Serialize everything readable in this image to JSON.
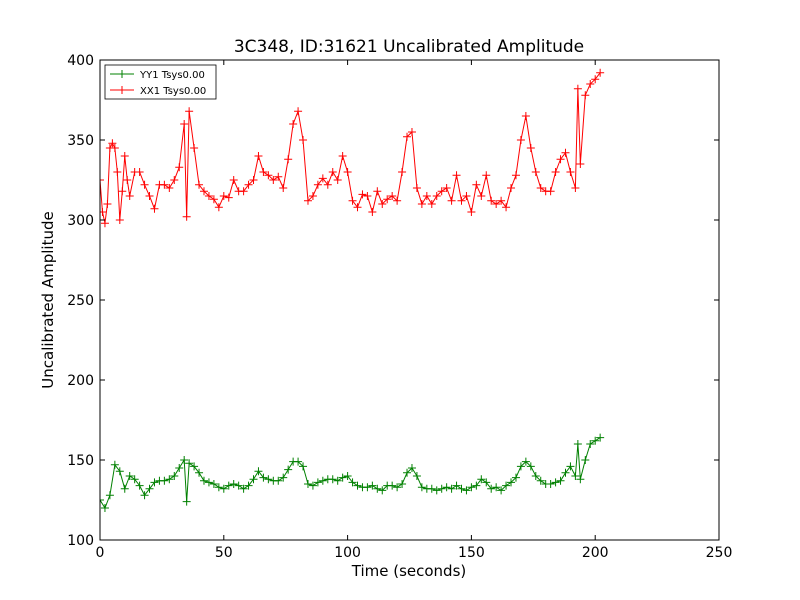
{
  "chart_data": {
    "type": "line",
    "title": "3C348, ID:31621 Uncalibrated Amplitude",
    "xlabel": "Time (seconds)",
    "ylabel": "Uncalibrated Amplitude",
    "xlim": [
      0,
      250
    ],
    "ylim": [
      100,
      400
    ],
    "x_ticks": [
      "0",
      "50",
      "100",
      "150",
      "200",
      "250"
    ],
    "y_ticks": [
      "100",
      "150",
      "200",
      "250",
      "300",
      "350",
      "400"
    ],
    "grid": false,
    "legend_position": "top-left",
    "marker": "plus",
    "series": [
      {
        "name": "YY1 Tsys0.00",
        "color": "#008000",
        "x": [
          0,
          2,
          4,
          6,
          8,
          10,
          12,
          14,
          16,
          18,
          20,
          22,
          24,
          26,
          28,
          30,
          32,
          34,
          35,
          36,
          38,
          40,
          42,
          44,
          46,
          48,
          50,
          52,
          54,
          56,
          58,
          60,
          62,
          64,
          66,
          68,
          70,
          72,
          74,
          76,
          78,
          80,
          82,
          84,
          86,
          88,
          90,
          92,
          94,
          96,
          98,
          100,
          102,
          104,
          106,
          108,
          110,
          112,
          114,
          116,
          118,
          120,
          122,
          124,
          126,
          128,
          130,
          132,
          134,
          136,
          138,
          140,
          142,
          144,
          146,
          148,
          150,
          152,
          154,
          156,
          158,
          160,
          162,
          164,
          166,
          168,
          170,
          172,
          174,
          176,
          178,
          180,
          182,
          184,
          186,
          188,
          190,
          192,
          193,
          194,
          196,
          198,
          200,
          202
        ],
        "y": [
          125,
          120,
          128,
          147,
          143,
          132,
          140,
          138,
          134,
          128,
          132,
          136,
          137,
          137,
          138,
          140,
          145,
          150,
          124,
          148,
          146,
          142,
          137,
          136,
          135,
          133,
          132,
          134,
          135,
          134,
          132,
          134,
          138,
          143,
          139,
          138,
          137,
          137,
          139,
          144,
          149,
          149,
          146,
          135,
          134,
          136,
          137,
          138,
          138,
          137,
          139,
          140,
          136,
          134,
          133,
          133,
          134,
          132,
          131,
          134,
          134,
          133,
          135,
          142,
          145,
          140,
          133,
          132,
          132,
          131,
          132,
          133,
          132,
          134,
          132,
          131,
          133,
          134,
          138,
          136,
          132,
          133,
          131,
          134,
          136,
          139,
          146,
          149,
          146,
          140,
          137,
          135,
          135,
          136,
          137,
          142,
          146,
          140,
          160,
          138,
          150,
          160,
          162,
          164
        ]
      },
      {
        "name": "XX1 Tsys0.00",
        "color": "#ff0000",
        "x": [
          0,
          1,
          2,
          3,
          4,
          5,
          6,
          7,
          8,
          9,
          10,
          11,
          12,
          14,
          16,
          18,
          20,
          22,
          24,
          26,
          28,
          30,
          32,
          34,
          35,
          36,
          38,
          40,
          42,
          44,
          46,
          48,
          50,
          52,
          54,
          56,
          58,
          60,
          62,
          64,
          66,
          68,
          70,
          72,
          74,
          76,
          78,
          80,
          82,
          84,
          86,
          88,
          90,
          92,
          94,
          96,
          98,
          100,
          102,
          104,
          106,
          108,
          110,
          112,
          114,
          116,
          118,
          120,
          122,
          124,
          126,
          128,
          130,
          132,
          134,
          136,
          138,
          140,
          142,
          144,
          146,
          148,
          150,
          152,
          154,
          156,
          158,
          160,
          162,
          164,
          166,
          168,
          170,
          172,
          174,
          176,
          178,
          180,
          182,
          184,
          186,
          188,
          190,
          192,
          193,
          194,
          196,
          198,
          200,
          202
        ],
        "y": [
          325,
          305,
          298,
          310,
          345,
          348,
          345,
          330,
          300,
          318,
          340,
          325,
          315,
          330,
          330,
          322,
          315,
          307,
          322,
          322,
          320,
          325,
          333,
          360,
          302,
          368,
          345,
          322,
          318,
          315,
          313,
          308,
          315,
          314,
          325,
          318,
          318,
          322,
          325,
          340,
          330,
          328,
          325,
          327,
          320,
          338,
          360,
          368,
          350,
          312,
          315,
          322,
          326,
          322,
          330,
          325,
          340,
          330,
          312,
          308,
          316,
          315,
          305,
          318,
          310,
          313,
          315,
          312,
          330,
          352,
          355,
          320,
          310,
          315,
          310,
          315,
          318,
          320,
          312,
          328,
          312,
          315,
          305,
          322,
          315,
          328,
          312,
          310,
          312,
          308,
          320,
          328,
          350,
          365,
          345,
          330,
          320,
          318,
          318,
          330,
          338,
          342,
          330,
          320,
          382,
          335,
          378,
          385,
          388,
          392
        ]
      }
    ]
  }
}
